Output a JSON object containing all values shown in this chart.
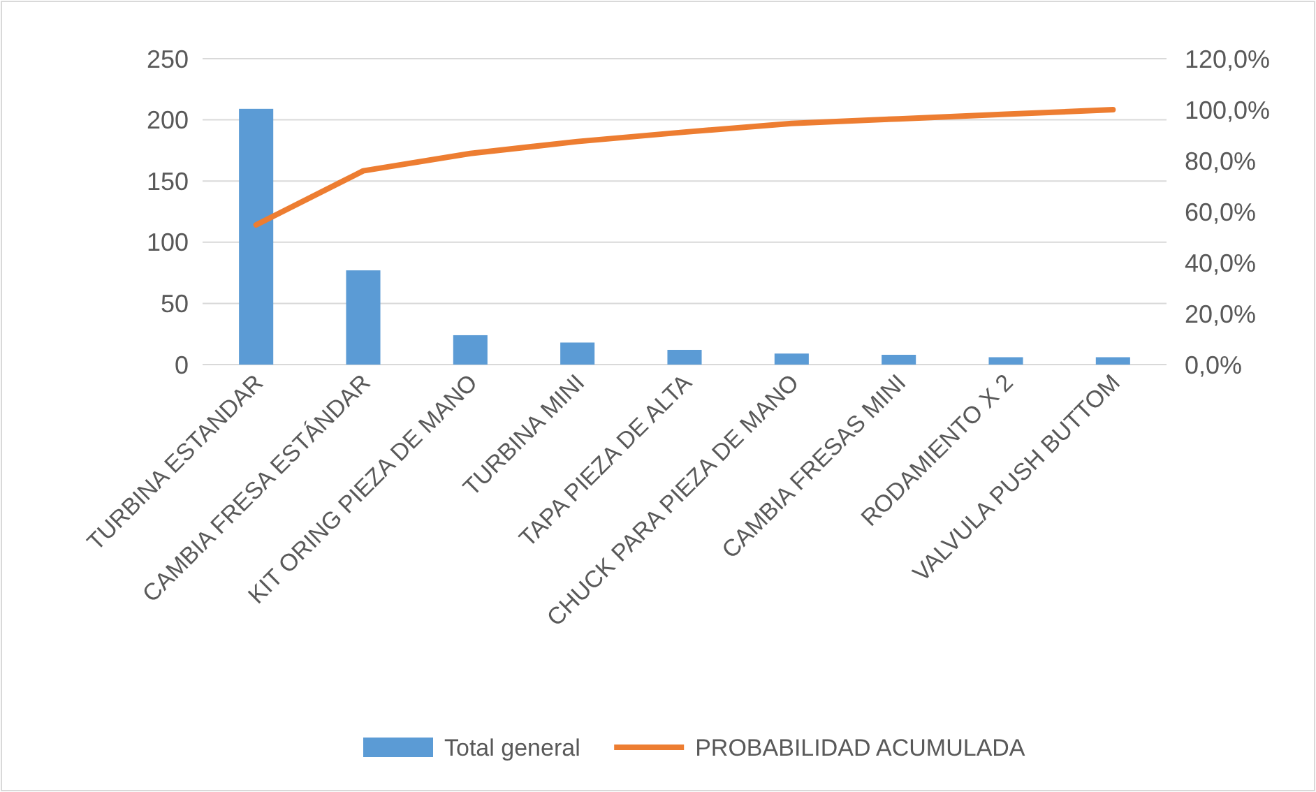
{
  "chart_data": {
    "type": "bar",
    "categories": [
      "TURBINA ESTANDAR",
      "CAMBIA FRESA ESTÁNDAR",
      "KIT ORING PIEZA DE MANO",
      "TURBINA MINI",
      "TAPA PIEZA DE ALTA",
      "CHUCK PARA PIEZA DE MANO",
      "CAMBIA FRESAS MINI",
      "RODAMIENTO X 2",
      "VALVULA PUSH BUTTOM"
    ],
    "series": [
      {
        "name": "Total general",
        "color": "#5b9bd5",
        "values": [
          209,
          77,
          24,
          18,
          12,
          9,
          8,
          6,
          6
        ]
      },
      {
        "name": "PROBABILIDAD ACUMULADA",
        "type": "line",
        "axis": "y2",
        "color": "#ed7d31",
        "values": [
          54.8,
          76,
          82.8,
          87.5,
          91.2,
          94.6,
          96.4,
          98.2,
          100
        ]
      }
    ],
    "ylim": [
      0,
      250
    ],
    "yticks": [
      0,
      50,
      100,
      150,
      200,
      250
    ],
    "y2lim": [
      0,
      120
    ],
    "y2ticks": [
      {
        "value": 0,
        "label": "0,0%"
      },
      {
        "value": 20,
        "label": "20,0%"
      },
      {
        "value": 40,
        "label": "40,0%"
      },
      {
        "value": 60,
        "label": "60,0%"
      },
      {
        "value": 80,
        "label": "80,0%"
      },
      {
        "value": 100,
        "label": "100,0%"
      },
      {
        "value": 120,
        "label": "120,0%"
      }
    ],
    "grid": "y",
    "legend": "bottom",
    "marker": "none",
    "line_style": "solid"
  }
}
